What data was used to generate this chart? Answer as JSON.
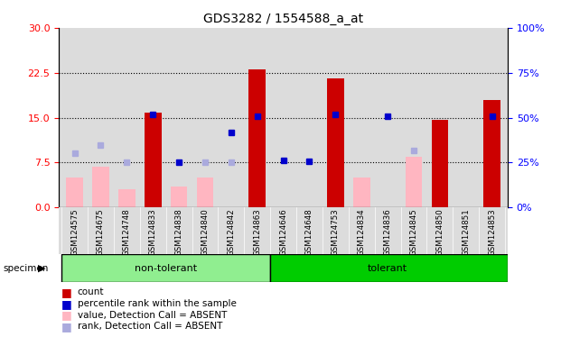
{
  "title": "GDS3282 / 1554588_a_at",
  "samples": [
    "GSM124575",
    "GSM124675",
    "GSM124748",
    "GSM124833",
    "GSM124838",
    "GSM124840",
    "GSM124842",
    "GSM124863",
    "GSM124646",
    "GSM124648",
    "GSM124753",
    "GSM124834",
    "GSM124836",
    "GSM124845",
    "GSM124850",
    "GSM124851",
    "GSM124853"
  ],
  "count": [
    null,
    null,
    null,
    15.8,
    null,
    null,
    null,
    23.0,
    null,
    null,
    21.5,
    null,
    null,
    null,
    14.7,
    null,
    18.0
  ],
  "value_absent": [
    5.0,
    6.8,
    3.0,
    null,
    3.5,
    5.0,
    null,
    null,
    null,
    null,
    null,
    5.0,
    null,
    8.5,
    null,
    null,
    null
  ],
  "rank_absent": [
    9.0,
    10.5,
    7.5,
    null,
    null,
    7.5,
    7.5,
    null,
    null,
    null,
    null,
    null,
    null,
    9.5,
    null,
    null,
    null
  ],
  "percentile_rank": [
    null,
    null,
    null,
    15.5,
    7.5,
    null,
    12.5,
    15.2,
    7.8,
    7.7,
    15.5,
    null,
    15.3,
    null,
    null,
    null,
    15.3
  ],
  "ylim_left": [
    0,
    30
  ],
  "ylim_right": [
    0,
    100
  ],
  "yticks_left": [
    0,
    7.5,
    15,
    22.5,
    30
  ],
  "yticks_right": [
    0,
    25,
    50,
    75,
    100
  ],
  "nt_color": "#90EE90",
  "t_color": "#00CC00",
  "bar_color_count": "#CC0000",
  "bar_color_value_absent": "#FFB6C1",
  "marker_color_rank_absent": "#AAAADD",
  "marker_color_percentile": "#0000CC",
  "background_color": "#DCDCDC",
  "grid_lines": [
    7.5,
    15,
    22.5
  ]
}
